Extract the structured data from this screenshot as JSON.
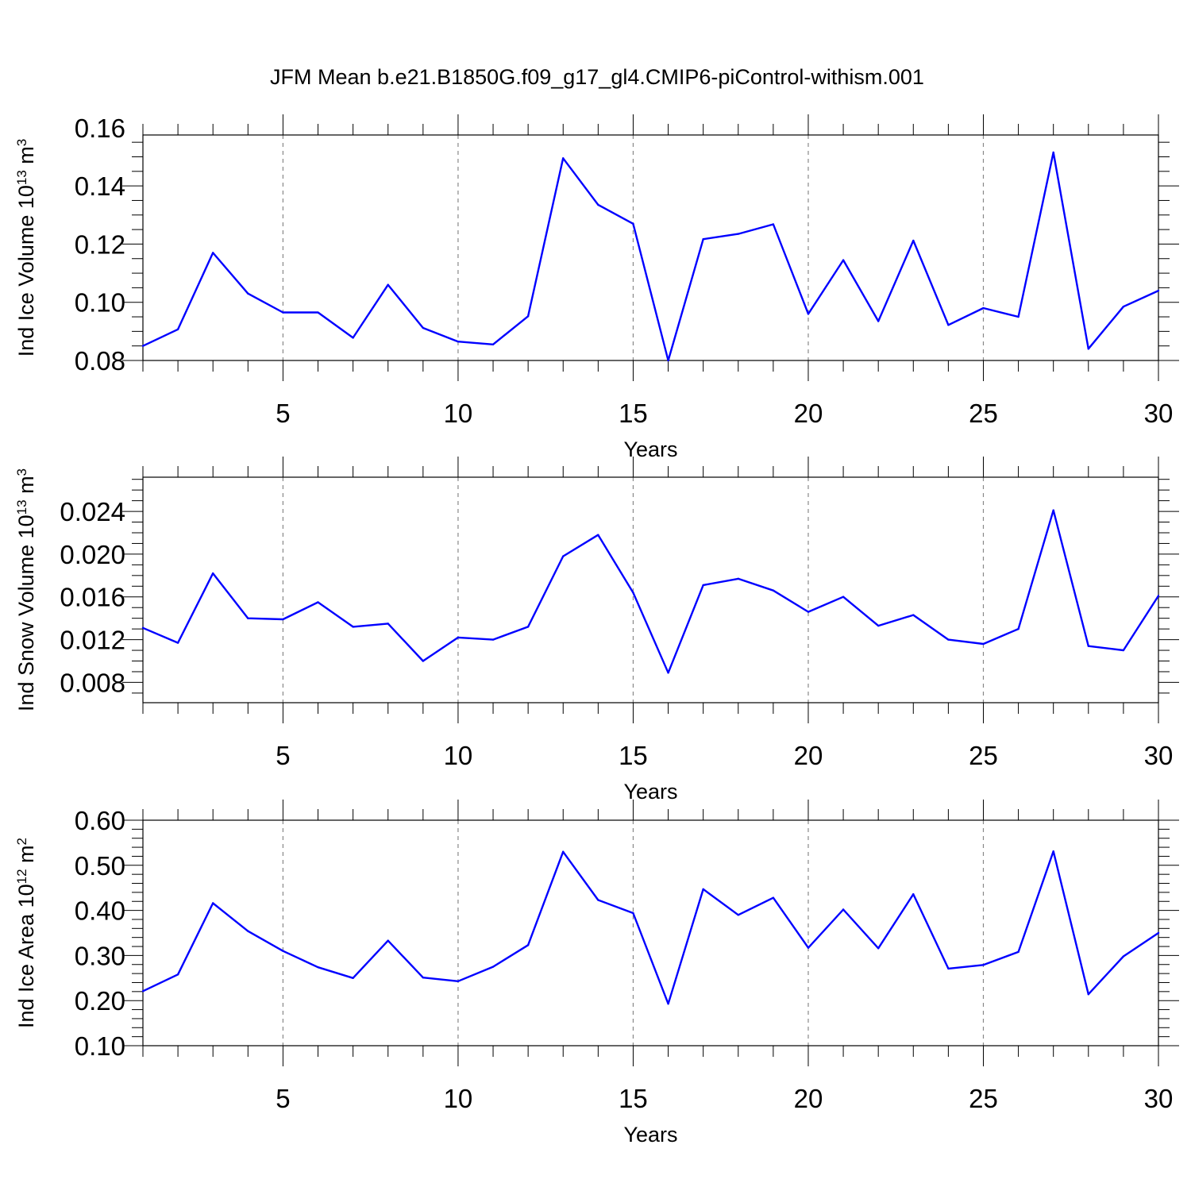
{
  "title": "JFM Mean b.e21.B1850G.f09_g17_gl4.CMIP6-piControl-withism.001",
  "line_color": "#0000ff",
  "chart_data": [
    {
      "type": "line",
      "xlabel": "Years",
      "ylabel": {
        "text": "Ind Ice Volume 10",
        "exponent": "13",
        "unit": " m",
        "unit_exponent": "3"
      },
      "xlim": [
        1,
        30
      ],
      "ylim": [
        0.08,
        0.1575
      ],
      "x_ticks": [
        5,
        10,
        15,
        20,
        25,
        30
      ],
      "x_tick_labels": [
        "5",
        "10",
        "15",
        "20",
        "25",
        "30"
      ],
      "y_ticks": [
        0.08,
        0.1,
        0.12,
        0.14,
        0.16
      ],
      "y_tick_labels": [
        "0.08",
        "0.10",
        "0.12",
        "0.14",
        "0.16"
      ],
      "y_minor_step": 0.005,
      "x_minor_step": 1,
      "grid": "vertical-dashed",
      "x": [
        1,
        2,
        3,
        4,
        5,
        6,
        7,
        8,
        9,
        10,
        11,
        12,
        13,
        14,
        15,
        16,
        17,
        18,
        19,
        20,
        21,
        22,
        23,
        24,
        25,
        26,
        27,
        28,
        29,
        30
      ],
      "y": [
        0.085,
        0.0907,
        0.117,
        0.103,
        0.0965,
        0.0965,
        0.0878,
        0.106,
        0.0912,
        0.0865,
        0.0855,
        0.0952,
        0.1495,
        0.1335,
        0.127,
        0.08,
        0.1217,
        0.1235,
        0.1268,
        0.096,
        0.1145,
        0.0935,
        0.1212,
        0.0922,
        0.098,
        0.095,
        0.1515,
        0.084,
        0.0985,
        0.104
      ]
    },
    {
      "type": "line",
      "xlabel": "Years",
      "ylabel": {
        "text": "Ind Snow Volume 10",
        "exponent": "13",
        "unit": " m",
        "unit_exponent": "3"
      },
      "xlim": [
        1,
        30
      ],
      "ylim": [
        0.0061,
        0.0272
      ],
      "x_ticks": [
        5,
        10,
        15,
        20,
        25,
        30
      ],
      "x_tick_labels": [
        "5",
        "10",
        "15",
        "20",
        "25",
        "30"
      ],
      "y_ticks": [
        0.008,
        0.012,
        0.016,
        0.02,
        0.024
      ],
      "y_tick_labels": [
        "0.008",
        "0.012",
        "0.016",
        "0.020",
        "0.024"
      ],
      "y_minor_step": 0.001,
      "x_minor_step": 1,
      "grid": "vertical-dashed",
      "x": [
        1,
        2,
        3,
        4,
        5,
        6,
        7,
        8,
        9,
        10,
        11,
        12,
        13,
        14,
        15,
        16,
        17,
        18,
        19,
        20,
        21,
        22,
        23,
        24,
        25,
        26,
        27,
        28,
        29,
        30
      ],
      "y": [
        0.0131,
        0.0117,
        0.0182,
        0.014,
        0.0139,
        0.0155,
        0.0132,
        0.0135,
        0.01,
        0.0122,
        0.012,
        0.0132,
        0.0198,
        0.0218,
        0.0164,
        0.0089,
        0.0171,
        0.0177,
        0.0166,
        0.0146,
        0.016,
        0.0133,
        0.0143,
        0.012,
        0.0116,
        0.013,
        0.0241,
        0.0114,
        0.011,
        0.0161
      ]
    },
    {
      "type": "line",
      "xlabel": "Years",
      "ylabel": {
        "text": "Ind Ice Area 10",
        "exponent": "12",
        "unit": " m",
        "unit_exponent": "2"
      },
      "xlim": [
        1,
        30
      ],
      "ylim": [
        0.1,
        0.6
      ],
      "x_ticks": [
        5,
        10,
        15,
        20,
        25,
        30
      ],
      "x_tick_labels": [
        "5",
        "10",
        "15",
        "20",
        "25",
        "30"
      ],
      "y_ticks": [
        0.1,
        0.2,
        0.3,
        0.4,
        0.5,
        0.6
      ],
      "y_tick_labels": [
        "0.10",
        "0.20",
        "0.30",
        "0.40",
        "0.50",
        "0.60"
      ],
      "y_minor_step": 0.02,
      "x_minor_step": 1,
      "grid": "vertical-dashed",
      "x": [
        1,
        2,
        3,
        4,
        5,
        6,
        7,
        8,
        9,
        10,
        11,
        12,
        13,
        14,
        15,
        16,
        17,
        18,
        19,
        20,
        21,
        22,
        23,
        24,
        25,
        26,
        27,
        28,
        29,
        30
      ],
      "y": [
        0.221,
        0.258,
        0.416,
        0.354,
        0.31,
        0.274,
        0.25,
        0.333,
        0.251,
        0.243,
        0.275,
        0.323,
        0.53,
        0.423,
        0.394,
        0.193,
        0.447,
        0.39,
        0.428,
        0.317,
        0.402,
        0.316,
        0.436,
        0.271,
        0.279,
        0.308,
        0.531,
        0.214,
        0.298,
        0.35
      ]
    }
  ]
}
